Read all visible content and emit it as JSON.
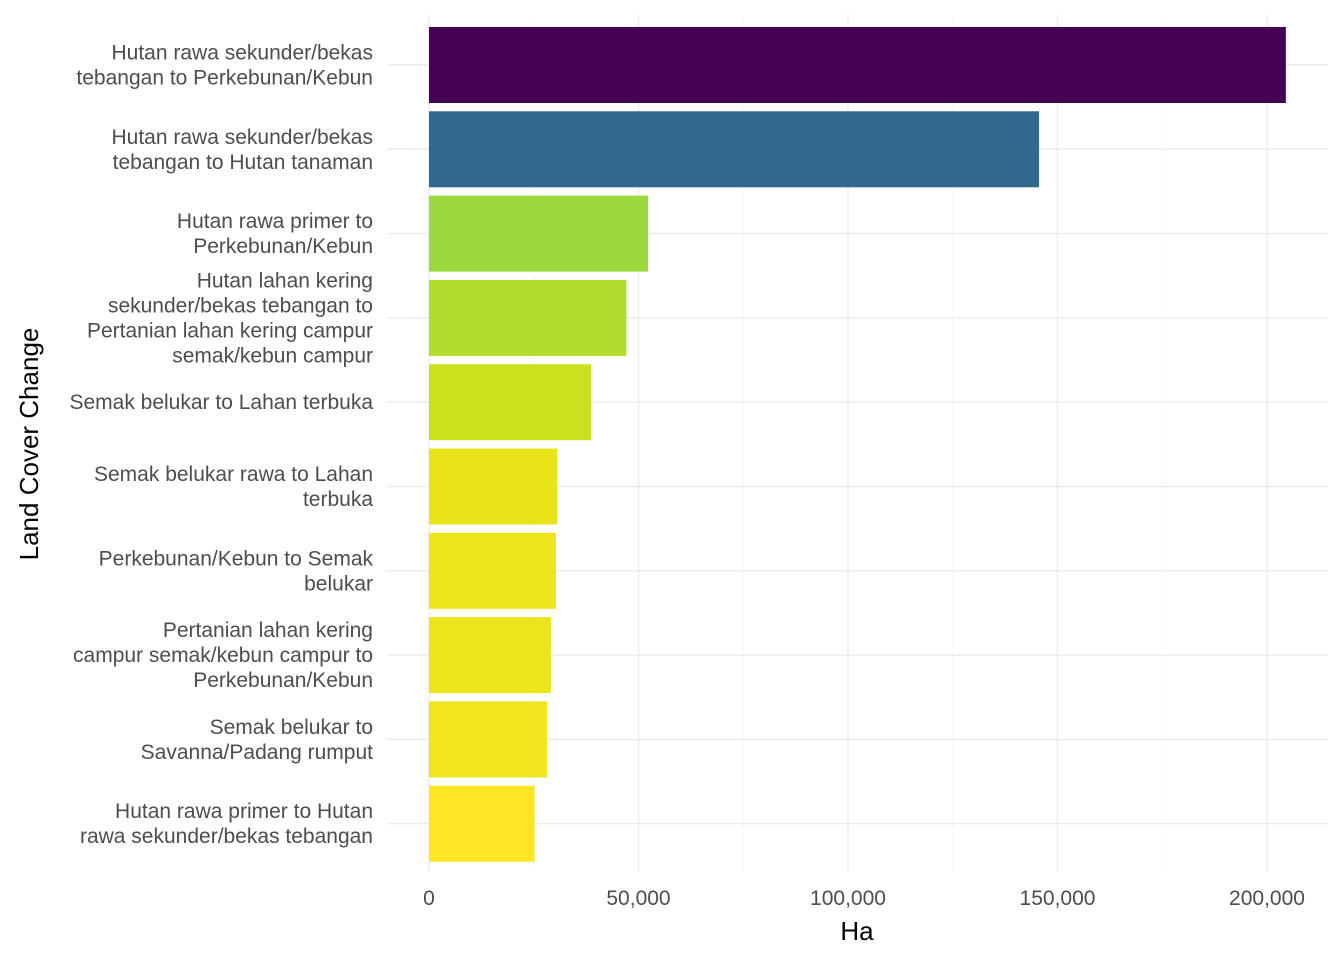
{
  "chart_data": {
    "type": "bar",
    "orientation": "horizontal",
    "title": "",
    "xlabel": "Ha",
    "ylabel": "Land Cover Change",
    "xlim": [
      0,
      205000
    ],
    "xticks": [
      0,
      50000,
      100000,
      150000,
      200000
    ],
    "xtick_labels": [
      "0",
      "50,000",
      "100,000",
      "150,000",
      "200,000"
    ],
    "grid": true,
    "legend": "none",
    "bars": [
      {
        "label_lines": [
          "Hutan rawa sekunder/bekas",
          "tebangan to Perkebunan/Kebun"
        ],
        "value": 204500,
        "color": "#440154"
      },
      {
        "label_lines": [
          "Hutan rawa sekunder/bekas",
          "tebangan to Hutan tanaman"
        ],
        "value": 145600,
        "color": "#31688E"
      },
      {
        "label_lines": [
          "Hutan rawa primer to",
          "Perkebunan/Kebun"
        ],
        "value": 52300,
        "color": "#9BD93C"
      },
      {
        "label_lines": [
          "Hutan lahan kering",
          "sekunder/bekas tebangan to",
          "Pertanian lahan kering campur",
          "semak/kebun campur"
        ],
        "value": 47100,
        "color": "#B1DD2F"
      },
      {
        "label_lines": [
          "Semak belukar to Lahan terbuka"
        ],
        "value": 38700,
        "color": "#CCE11E"
      },
      {
        "label_lines": [
          "Semak belukar rawa to Lahan",
          "terbuka"
        ],
        "value": 30600,
        "color": "#E8E419"
      },
      {
        "label_lines": [
          "Perkebunan/Kebun to Semak",
          "belukar"
        ],
        "value": 30300,
        "color": "#EBE51A"
      },
      {
        "label_lines": [
          "Pertanian lahan kering",
          "campur semak/kebun campur to",
          "Perkebunan/Kebun"
        ],
        "value": 29100,
        "color": "#EDE51B"
      },
      {
        "label_lines": [
          "Semak belukar to",
          "Savanna/Padang rumput"
        ],
        "value": 28200,
        "color": "#F1E51D"
      },
      {
        "label_lines": [
          "Hutan rawa primer to Hutan",
          "rawa sekunder/bekas tebangan"
        ],
        "value": 25200,
        "color": "#FDE725"
      }
    ]
  }
}
